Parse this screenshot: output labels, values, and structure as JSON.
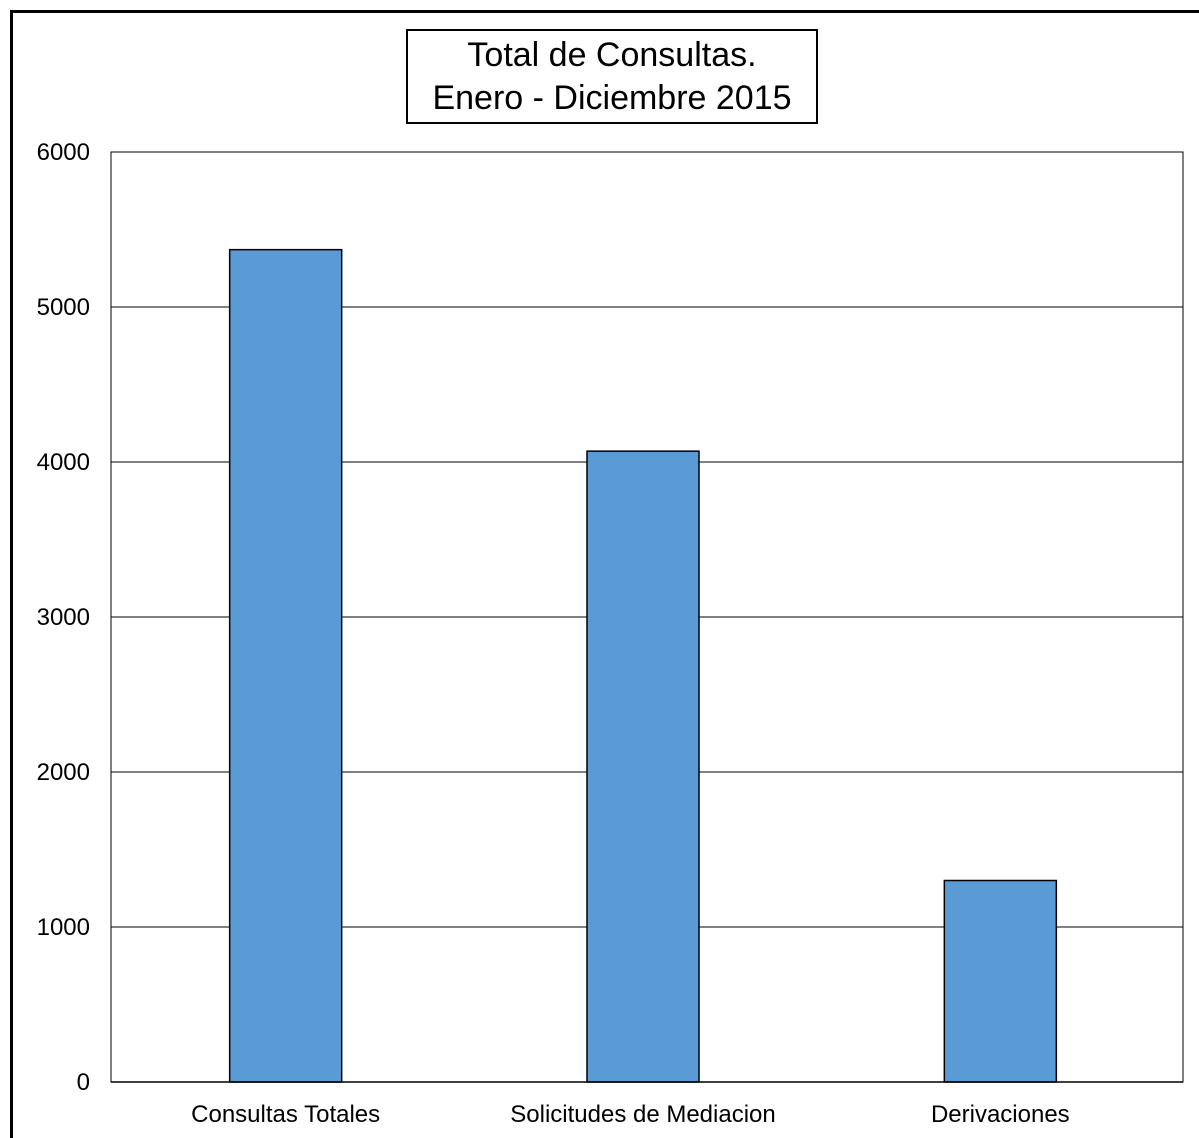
{
  "chart_data": {
    "type": "bar",
    "title": "Total de Consultas.",
    "subtitle": "Enero - Diciembre 2015",
    "xlabel": "",
    "ylabel": "",
    "categories": [
      "Consultas Totales",
      "Solicitudes de Mediacion",
      "Derivaciones"
    ],
    "values": [
      5370,
      4070,
      1300
    ],
    "ylim": [
      0,
      6000
    ],
    "yticks": [
      0,
      1000,
      2000,
      3000,
      4000,
      5000,
      6000
    ],
    "grid": true,
    "legend": "none",
    "colors": {
      "bar": "#5b9bd5",
      "bar_border": "#000000",
      "grid": "#000000",
      "background": "#ffffff"
    }
  }
}
